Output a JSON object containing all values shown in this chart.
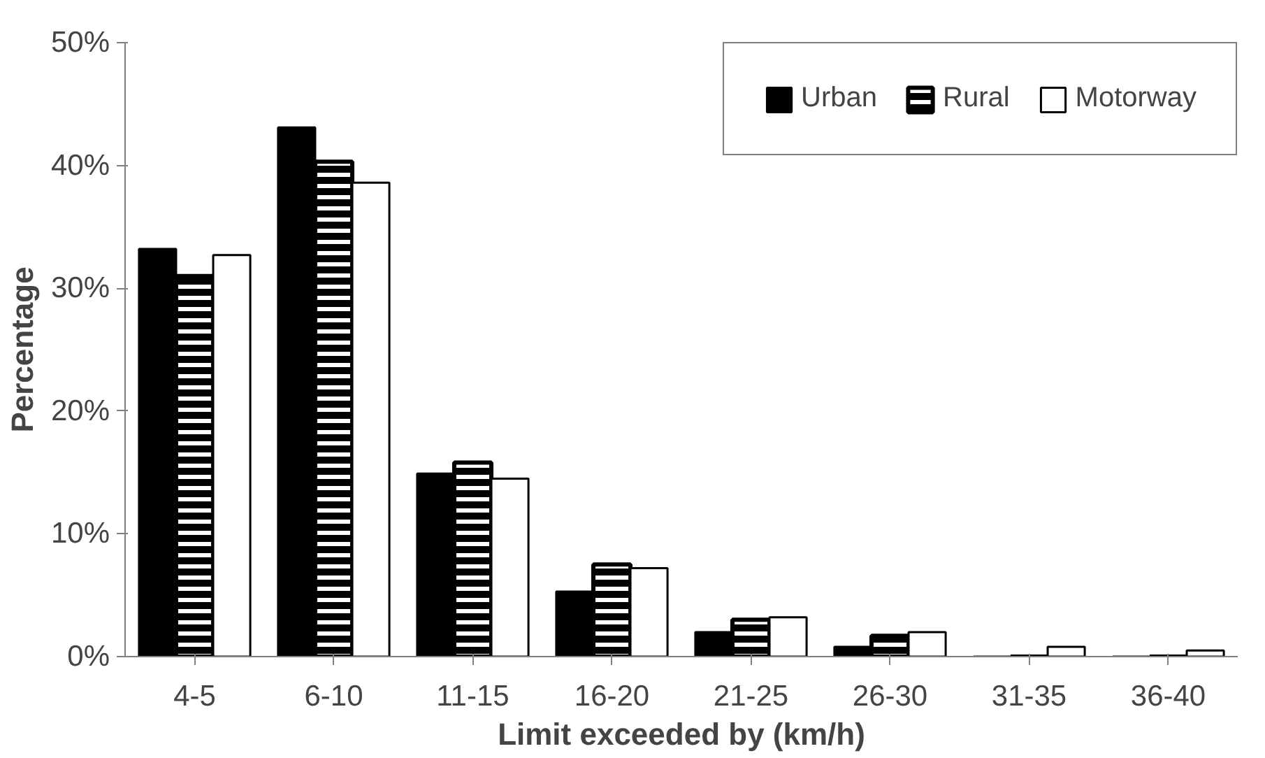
{
  "chart_data": {
    "type": "bar",
    "xlabel": "Limit exceeded by (km/h)",
    "ylabel": "Percentage",
    "categories": [
      "4-5",
      "6-10",
      "11-15",
      "16-20",
      "21-25",
      "26-30",
      "31-35",
      "36-40"
    ],
    "series": [
      {
        "name": "Urban",
        "color": "#000000",
        "values": [
          33.2,
          43.1,
          14.9,
          5.3,
          2.0,
          0.8,
          0,
          0
        ]
      },
      {
        "name": "Rural",
        "color": "#000000",
        "values": [
          31.0,
          40.3,
          15.8,
          7.5,
          3.0,
          1.7,
          0,
          0
        ]
      },
      {
        "name": "Motorway",
        "color": "#ffffff",
        "values": [
          32.7,
          38.6,
          14.5,
          7.2,
          3.2,
          2.0,
          0.8,
          0.5
        ]
      }
    ],
    "ylim": [
      0,
      50
    ],
    "yticks": [
      {
        "value": 0,
        "label": "0%"
      },
      {
        "value": 10,
        "label": "10%"
      },
      {
        "value": 20,
        "label": "20%"
      },
      {
        "value": 30,
        "label": "30%"
      },
      {
        "value": 40,
        "label": "40%"
      },
      {
        "value": 50,
        "label": "50%"
      }
    ],
    "grid": false,
    "legend": "top right"
  }
}
